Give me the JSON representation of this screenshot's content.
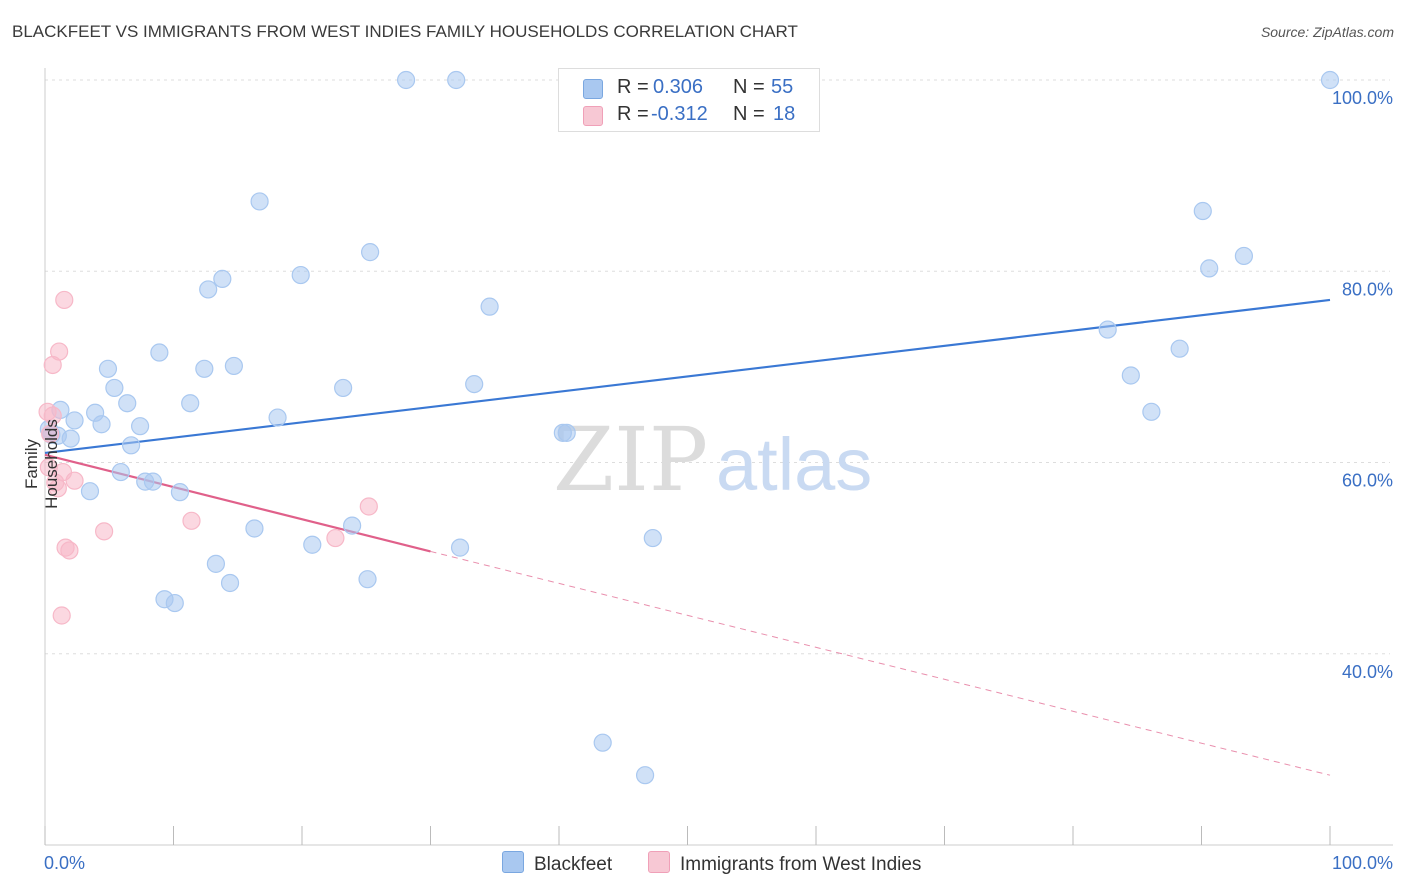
{
  "title": "BLACKFEET VS IMMIGRANTS FROM WEST INDIES FAMILY HOUSEHOLDS CORRELATION CHART",
  "source": "Source: ZipAtlas.com",
  "watermark": {
    "zip": "ZIP",
    "atlas": "atlas"
  },
  "legend_stats": [
    {
      "r_label": "R =",
      "r_value": "0.306",
      "n_label": "N =",
      "n_value": "55",
      "color": "#a9c8f0"
    },
    {
      "r_label": "R =",
      "r_value": "-0.312",
      "n_label": "N =",
      "n_value": "18",
      "color": "#f7b8c8"
    }
  ],
  "legend_bottom": [
    {
      "label": "Blackfeet",
      "color": "#a9c8f0"
    },
    {
      "label": "Immigrants from West Indies",
      "color": "#f7b8c8"
    }
  ],
  "chart_data": {
    "type": "scatter",
    "title": "BLACKFEET VS IMMIGRANTS FROM WEST INDIES FAMILY HOUSEHOLDS CORRELATION CHART",
    "xlabel": "",
    "ylabel": "Family Households",
    "xlim": [
      0,
      100
    ],
    "ylim": [
      20,
      100
    ],
    "x_tick_labels": [
      "0.0%",
      "100.0%"
    ],
    "y_ticks": [
      40,
      60,
      80,
      100
    ],
    "y_tick_labels": [
      "40.0%",
      "60.0%",
      "80.0%",
      "100.0%"
    ],
    "grid": true,
    "series": [
      {
        "name": "Blackfeet",
        "color": "#3a78d4",
        "fill": "#a9c8f0",
        "points": [
          [
            0.5,
            62.9
          ],
          [
            1.2,
            65.5
          ],
          [
            1.0,
            62.8
          ],
          [
            2.0,
            62.5
          ],
          [
            2.3,
            64.4
          ],
          [
            3.5,
            57.0
          ],
          [
            3.9,
            65.2
          ],
          [
            4.4,
            64.0
          ],
          [
            4.9,
            69.8
          ],
          [
            5.4,
            67.8
          ],
          [
            6.4,
            66.2
          ],
          [
            5.9,
            59.0
          ],
          [
            6.7,
            61.8
          ],
          [
            7.4,
            63.8
          ],
          [
            7.8,
            58.0
          ],
          [
            8.4,
            58.0
          ],
          [
            8.9,
            71.5
          ],
          [
            9.3,
            45.7
          ],
          [
            10.1,
            45.3
          ],
          [
            10.5,
            56.9
          ],
          [
            11.3,
            66.2
          ],
          [
            12.4,
            69.8
          ],
          [
            13.3,
            49.4
          ],
          [
            12.7,
            78.1
          ],
          [
            13.8,
            79.2
          ],
          [
            14.4,
            47.4
          ],
          [
            14.7,
            70.1
          ],
          [
            16.3,
            53.1
          ],
          [
            16.7,
            87.3
          ],
          [
            18.1,
            64.7
          ],
          [
            19.9,
            79.6
          ],
          [
            20.8,
            51.4
          ],
          [
            23.2,
            67.8
          ],
          [
            23.9,
            53.4
          ],
          [
            25.1,
            47.8
          ],
          [
            25.3,
            82.0
          ],
          [
            28.1,
            100.0
          ],
          [
            32.0,
            100.0
          ],
          [
            32.3,
            51.1
          ],
          [
            33.4,
            68.2
          ],
          [
            34.6,
            76.3
          ],
          [
            40.3,
            63.1
          ],
          [
            40.6,
            63.1
          ],
          [
            43.4,
            30.7
          ],
          [
            46.7,
            27.3
          ],
          [
            47.3,
            52.1
          ],
          [
            82.7,
            73.9
          ],
          [
            84.5,
            69.1
          ],
          [
            86.1,
            65.3
          ],
          [
            88.3,
            71.9
          ],
          [
            90.1,
            86.3
          ],
          [
            90.6,
            80.3
          ],
          [
            93.3,
            81.6
          ],
          [
            100.0,
            100.0
          ],
          [
            0.3,
            63.5
          ]
        ],
        "trend": {
          "x": [
            0,
            100
          ],
          "y": [
            61.0,
            77.0
          ],
          "style": "solid"
        }
      },
      {
        "name": "Immigrants from West Indies",
        "color": "#e0608a",
        "fill": "#f7b8c8",
        "points": [
          [
            0.2,
            65.3
          ],
          [
            0.4,
            63.0
          ],
          [
            0.6,
            70.2
          ],
          [
            0.8,
            57.9
          ],
          [
            1.0,
            57.3
          ],
          [
            1.1,
            71.6
          ],
          [
            1.3,
            44.0
          ],
          [
            1.4,
            59.0
          ],
          [
            1.5,
            77.0
          ],
          [
            1.6,
            51.1
          ],
          [
            1.9,
            50.8
          ],
          [
            2.3,
            58.1
          ],
          [
            4.6,
            52.8
          ],
          [
            11.4,
            53.9
          ],
          [
            22.6,
            52.1
          ],
          [
            25.2,
            55.4
          ],
          [
            0.3,
            59.5
          ],
          [
            0.6,
            64.9
          ]
        ],
        "trend": {
          "x": [
            0,
            30
          ],
          "y": [
            60.8,
            50.7
          ],
          "style": "solid"
        },
        "trend_extension": {
          "x": [
            30,
            100
          ],
          "y": [
            50.7,
            27.3
          ],
          "style": "dashed"
        }
      }
    ]
  }
}
